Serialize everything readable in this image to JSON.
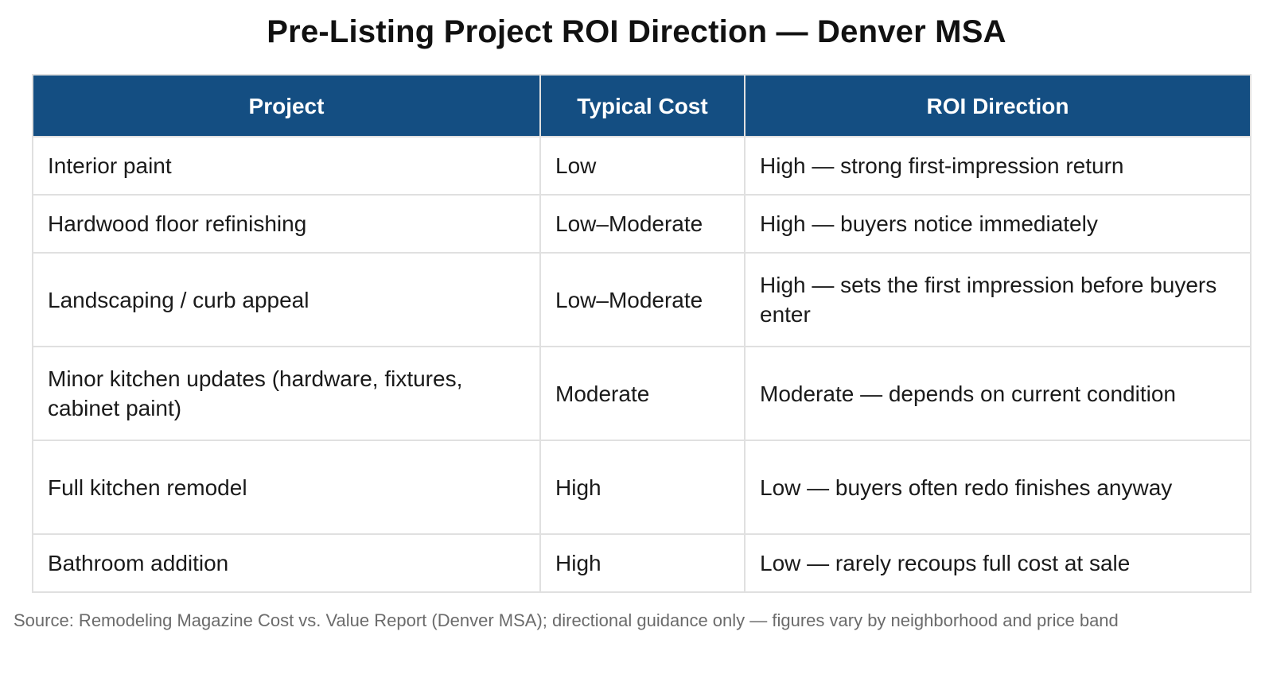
{
  "title": "Pre-Listing Project ROI Direction — Denver MSA",
  "table": {
    "headers": [
      "Project",
      "Typical Cost",
      "ROI Direction"
    ],
    "rows": [
      [
        "Interior paint",
        "Low",
        "High — strong first-impression return"
      ],
      [
        "Hardwood floor refinishing",
        "Low–Moderate",
        "High — buyers notice immediately"
      ],
      [
        "Landscaping / curb appeal",
        "Low–Moderate",
        "High — sets the first impression before buyers enter"
      ],
      [
        "Minor kitchen updates (hardware, fixtures, cabinet paint)",
        "Moderate",
        "Moderate — depends on current condition"
      ],
      [
        "Full kitchen remodel",
        "High",
        "Low — buyers often redo finishes anyway"
      ],
      [
        "Bathroom addition",
        "High",
        "Low — rarely recoups full cost at sale"
      ]
    ]
  },
  "footnote": "Source: Remodeling Magazine Cost vs. Value Report (Denver MSA); directional guidance only — figures vary by neighborhood and price band",
  "colors": {
    "header_bg": "#144e82",
    "header_text": "#ffffff",
    "border": "#e0e0e0",
    "footnote_text": "#6b6b6b"
  }
}
